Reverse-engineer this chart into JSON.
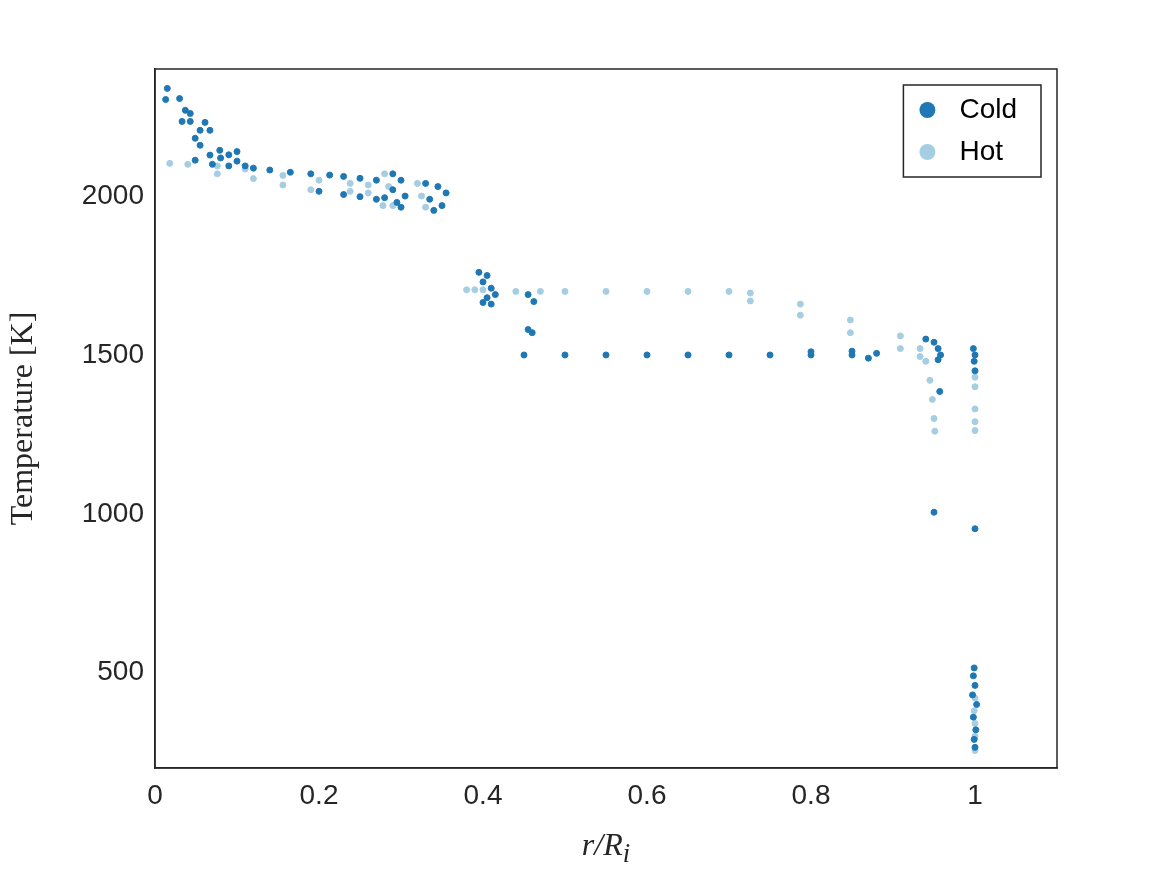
{
  "chart_data": {
    "type": "scatter",
    "xlabel": "r/R$_{i}$",
    "ylabel": "Temperature [K]",
    "xlim": [
      0,
      1.1
    ],
    "ylim": [
      200,
      2400
    ],
    "xticks": [
      0,
      0.2,
      0.4,
      0.6,
      0.8,
      1
    ],
    "yticks": [
      500,
      1000,
      1500,
      2000
    ],
    "legend": "top right",
    "marker": "circle",
    "series": [
      {
        "name": "Cold",
        "color": "#1f78b4",
        "x": [
          0.015,
          0.013,
          0.03,
          0.037,
          0.043,
          0.043,
          0.033,
          0.061,
          0.055,
          0.067,
          0.049,
          0.055,
          0.067,
          0.049,
          0.079,
          0.07,
          0.08,
          0.09,
          0.1,
          0.11,
          0.09,
          0.1,
          0.12,
          0.14,
          0.165,
          0.19,
          0.213,
          0.23,
          0.25,
          0.27,
          0.2,
          0.23,
          0.25,
          0.27,
          0.28,
          0.29,
          0.3,
          0.29,
          0.305,
          0.295,
          0.3,
          0.33,
          0.345,
          0.355,
          0.335,
          0.35,
          0.34,
          0.395,
          0.405,
          0.4,
          0.41,
          0.415,
          0.405,
          0.4,
          0.41,
          0.455,
          0.462,
          0.455,
          0.46,
          0.45,
          0.5,
          0.55,
          0.6,
          0.65,
          0.7,
          0.75,
          0.8,
          0.85,
          0.8,
          0.85,
          0.87,
          0.88,
          0.94,
          0.95,
          0.955,
          0.958,
          0.955,
          0.957,
          0.95,
          0.998,
          1.0,
          0.999,
          1.0,
          1.0,
          0.999,
          0.998,
          1.0,
          0.997,
          1.002,
          0.998,
          1.001,
          0.999,
          1.0
        ],
        "values": [
          2339,
          2304,
          2307,
          2270,
          2260,
          2235,
          2235,
          2232,
          2207,
          2207,
          2182,
          2160,
          2129,
          2113,
          2144,
          2100,
          2120,
          2130,
          2110,
          2095,
          2095,
          2140,
          2088,
          2082,
          2075,
          2070,
          2066,
          2062,
          2056,
          2050,
          2015,
          2005,
          1998,
          1990,
          1995,
          2070,
          2050,
          2020,
          2000,
          1980,
          1965,
          2040,
          2030,
          2010,
          1990,
          1970,
          1955,
          1760,
          1750,
          1730,
          1710,
          1690,
          1680,
          1665,
          1660,
          1690,
          1668,
          1580,
          1570,
          1500,
          1500,
          1500,
          1500,
          1500,
          1500,
          1500,
          1500,
          1500,
          1510,
          1512,
          1490,
          1505,
          1550,
          1540,
          1520,
          1500,
          1485,
          1385,
          1005,
          1520,
          1500,
          1480,
          1450,
          953,
          515,
          490,
          460,
          430,
          400,
          360,
          320,
          290,
          265
        ]
      },
      {
        "name": "Hot",
        "color": "#a6cee3",
        "x": [
          0.018,
          0.04,
          0.076,
          0.076,
          0.11,
          0.12,
          0.156,
          0.156,
          0.2,
          0.19,
          0.238,
          0.238,
          0.26,
          0.26,
          0.28,
          0.285,
          0.278,
          0.29,
          0.32,
          0.325,
          0.33,
          0.38,
          0.39,
          0.4,
          0.44,
          0.47,
          0.5,
          0.55,
          0.6,
          0.65,
          0.7,
          0.726,
          0.726,
          0.787,
          0.787,
          0.848,
          0.848,
          0.909,
          0.909,
          0.933,
          0.933,
          0.94,
          0.945,
          0.948,
          0.95,
          0.951,
          1.0,
          1.0,
          1.0,
          1.0,
          1.0,
          1.0,
          0.999,
          1.0,
          1.0,
          1.0
        ],
        "values": [
          2103,
          2100,
          2095,
          2070,
          2085,
          2055,
          2065,
          2035,
          2050,
          2020,
          2040,
          2015,
          2035,
          2010,
          2070,
          2030,
          1970,
          1970,
          2040,
          2000,
          1965,
          1705,
          1705,
          1705,
          1700,
          1700,
          1700,
          1700,
          1700,
          1700,
          1700,
          1695,
          1670,
          1660,
          1625,
          1610,
          1570,
          1560,
          1520,
          1520,
          1495,
          1480,
          1420,
          1360,
          1300,
          1260,
          1430,
          1400,
          1330,
          1290,
          1262,
          420,
          380,
          340,
          300,
          255
        ]
      }
    ]
  }
}
